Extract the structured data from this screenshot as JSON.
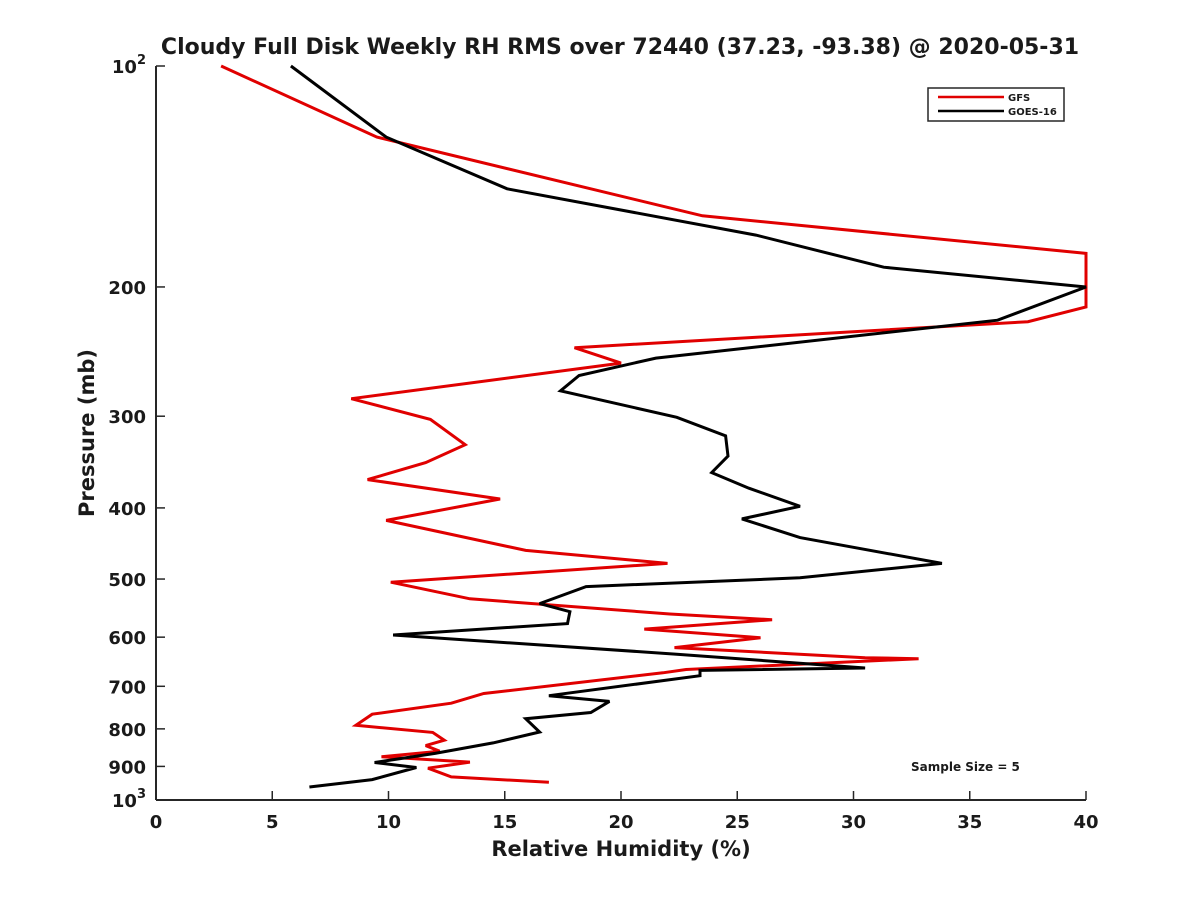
{
  "chart_data": {
    "type": "line",
    "title": "Cloudy Full Disk Weekly RH RMS over 72440 (37.23, -93.38) @ 2020-05-31",
    "xlabel": "Relative Humidity (%)",
    "ylabel": "Pressure (mb)",
    "xlim": [
      0,
      40
    ],
    "ylim": [
      100,
      1000
    ],
    "y_scale": "log",
    "y_reversed": true,
    "grid": false,
    "legend_position": "top-right",
    "x_ticks": [
      "0",
      "5",
      "10",
      "15",
      "20",
      "25",
      "30",
      "35",
      "40"
    ],
    "y_ticks": [
      {
        "value": 100,
        "base": "10",
        "exp": "2"
      },
      {
        "value": 200,
        "label": "200"
      },
      {
        "value": 300,
        "label": "300"
      },
      {
        "value": 400,
        "label": "400"
      },
      {
        "value": 500,
        "label": "500"
      },
      {
        "value": 600,
        "label": "600"
      },
      {
        "value": 700,
        "label": "700"
      },
      {
        "value": 800,
        "label": "800"
      },
      {
        "value": 900,
        "label": "900"
      },
      {
        "value": 1000,
        "base": "10",
        "exp": "3"
      }
    ],
    "annotation": "Sample Size = 5",
    "series": [
      {
        "name": "GFS",
        "color": "#e00000",
        "points": [
          [
            2.8,
            100
          ],
          [
            9.5,
            125
          ],
          [
            23.5,
            160
          ],
          [
            40,
            180
          ],
          [
            40,
            213
          ],
          [
            37.5,
            223
          ],
          [
            18,
            242
          ],
          [
            20,
            254
          ],
          [
            8.4,
            284
          ],
          [
            11.8,
            303
          ],
          [
            13.3,
            328
          ],
          [
            11.6,
            347
          ],
          [
            9.1,
            366
          ],
          [
            14.8,
            389
          ],
          [
            9.9,
            416
          ],
          [
            15.9,
            457
          ],
          [
            22.0,
            476
          ],
          [
            10.1,
            505
          ],
          [
            13.5,
            532
          ],
          [
            22.1,
            558
          ],
          [
            26.5,
            568
          ],
          [
            21.0,
            585
          ],
          [
            26.0,
            601
          ],
          [
            22.3,
            620
          ],
          [
            30.5,
            640
          ],
          [
            32.8,
            642
          ],
          [
            22.8,
            664
          ],
          [
            21.8,
            671
          ],
          [
            14.1,
            716
          ],
          [
            12.7,
            738
          ],
          [
            9.3,
            764
          ],
          [
            8.6,
            791
          ],
          [
            11.9,
            809
          ],
          [
            12.4,
            829
          ],
          [
            11.6,
            843
          ],
          [
            12.2,
            858
          ],
          [
            9.7,
            873
          ],
          [
            13.5,
            888
          ],
          [
            11.7,
            905
          ],
          [
            12.7,
            930
          ],
          [
            16.9,
            946
          ]
        ]
      },
      {
        "name": "GOES-16",
        "color": "#000000",
        "points": [
          [
            5.8,
            100
          ],
          [
            9.9,
            125
          ],
          [
            15.1,
            147
          ],
          [
            25.8,
            170
          ],
          [
            31.3,
            188
          ],
          [
            40,
            200
          ],
          [
            36.2,
            222
          ],
          [
            21.5,
            250
          ],
          [
            18.2,
            264
          ],
          [
            17.4,
            277
          ],
          [
            22.4,
            301
          ],
          [
            24.5,
            319
          ],
          [
            24.6,
            340
          ],
          [
            23.9,
            358
          ],
          [
            25.5,
            376
          ],
          [
            27.7,
            398
          ],
          [
            25.2,
            414
          ],
          [
            27.7,
            439
          ],
          [
            33.8,
            476
          ],
          [
            27.7,
            498
          ],
          [
            18.5,
            512
          ],
          [
            16.5,
            540
          ],
          [
            17.8,
            554
          ],
          [
            17.7,
            575
          ],
          [
            10.2,
            596
          ],
          [
            22.4,
            633
          ],
          [
            30.5,
            661
          ],
          [
            23.4,
            666
          ],
          [
            23.4,
            677
          ],
          [
            16.9,
            721
          ],
          [
            19.5,
            734
          ],
          [
            18.7,
            760
          ],
          [
            15.9,
            775
          ],
          [
            16.5,
            808
          ],
          [
            14.5,
            836
          ],
          [
            12.0,
            864
          ],
          [
            9.4,
            889
          ],
          [
            11.2,
            903
          ],
          [
            9.3,
            938
          ],
          [
            6.6,
            960
          ]
        ]
      }
    ]
  }
}
